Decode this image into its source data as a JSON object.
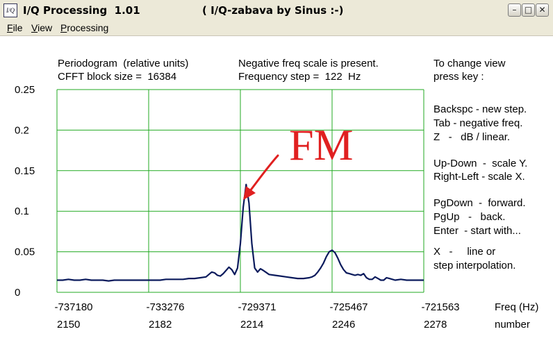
{
  "window": {
    "icon_label": "I/Q",
    "title": "I/Q Processing  1.01",
    "subtitle": "( I/Q-zabava by Sinus :-)"
  },
  "menu": [
    {
      "label": "File",
      "accel": "F",
      "rest": "ile"
    },
    {
      "label": "View",
      "accel": "V",
      "rest": "iew"
    },
    {
      "label": "Processing",
      "accel": "P",
      "rest": "rocessing"
    }
  ],
  "header": {
    "line1_left": "Periodogram  (relative units)",
    "line2_left": "CFFT block size =  16384",
    "line1_mid": "Negative freq scale is present.",
    "line2_mid": "Frequency step =  122  Hz"
  },
  "help": [
    "To change view",
    "press key :",
    "Backspc - new step.",
    "Tab - negative freq.",
    "Z   -   dB / linear.",
    "Up-Down  -  scale Y.",
    "Right-Left - scale X.",
    "PgDown  -  forward.",
    "PgUp   -   back.",
    "Enter  - start with...",
    "X   -     line or",
    "step interpolation."
  ],
  "annotation": "FM",
  "chart_data": {
    "type": "line",
    "title": "Periodogram  (relative units)",
    "ylim": [
      0,
      0.25
    ],
    "yticks": [
      "0.25",
      "0.2",
      "0.15",
      "0.1",
      "0.05",
      "0"
    ],
    "xticks_freq": [
      "-737180",
      "-733276",
      "-729371",
      "-725467",
      "-721563"
    ],
    "xticks_number": [
      "2150",
      "2182",
      "2214",
      "2246",
      "2278"
    ],
    "xlabel_freq": "Freq (Hz)",
    "xlabel_number": "number",
    "grid": true,
    "xlim": [
      2150,
      2278
    ],
    "series": [
      {
        "color": "#0a1a5c",
        "x": [
          2150,
          2152,
          2154,
          2156,
          2158,
          2160,
          2162,
          2164,
          2166,
          2168,
          2170,
          2172,
          2174,
          2176,
          2178,
          2180,
          2182,
          2184,
          2186,
          2188,
          2190,
          2192,
          2194,
          2196,
          2198,
          2200,
          2202,
          2203,
          2204,
          2205,
          2206,
          2207,
          2208,
          2209,
          2210,
          2211,
          2212,
          2213,
          2214,
          2215,
          2216,
          2217,
          2218,
          2219,
          2220,
          2221,
          2222,
          2224,
          2226,
          2228,
          2230,
          2232,
          2234,
          2236,
          2238,
          2239,
          2240,
          2241,
          2242,
          2243,
          2244,
          2245,
          2246,
          2247,
          2248,
          2249,
          2250,
          2251,
          2252,
          2253,
          2254,
          2255,
          2256,
          2257,
          2258,
          2259,
          2260,
          2261,
          2262,
          2263,
          2264,
          2265,
          2266,
          2268,
          2270,
          2272,
          2274,
          2276,
          2278
        ],
        "values": [
          0.015,
          0.015,
          0.016,
          0.015,
          0.015,
          0.016,
          0.015,
          0.015,
          0.015,
          0.014,
          0.015,
          0.015,
          0.015,
          0.015,
          0.015,
          0.015,
          0.015,
          0.015,
          0.015,
          0.016,
          0.016,
          0.016,
          0.016,
          0.017,
          0.017,
          0.018,
          0.019,
          0.022,
          0.025,
          0.024,
          0.021,
          0.02,
          0.023,
          0.027,
          0.031,
          0.028,
          0.022,
          0.03,
          0.06,
          0.105,
          0.133,
          0.11,
          0.06,
          0.03,
          0.025,
          0.029,
          0.027,
          0.022,
          0.021,
          0.02,
          0.019,
          0.018,
          0.017,
          0.017,
          0.018,
          0.019,
          0.021,
          0.025,
          0.03,
          0.036,
          0.044,
          0.05,
          0.052,
          0.049,
          0.042,
          0.034,
          0.028,
          0.024,
          0.023,
          0.022,
          0.021,
          0.022,
          0.021,
          0.023,
          0.018,
          0.016,
          0.016,
          0.019,
          0.017,
          0.015,
          0.015,
          0.018,
          0.017,
          0.015,
          0.016,
          0.015,
          0.015,
          0.015,
          0.015
        ]
      }
    ]
  }
}
